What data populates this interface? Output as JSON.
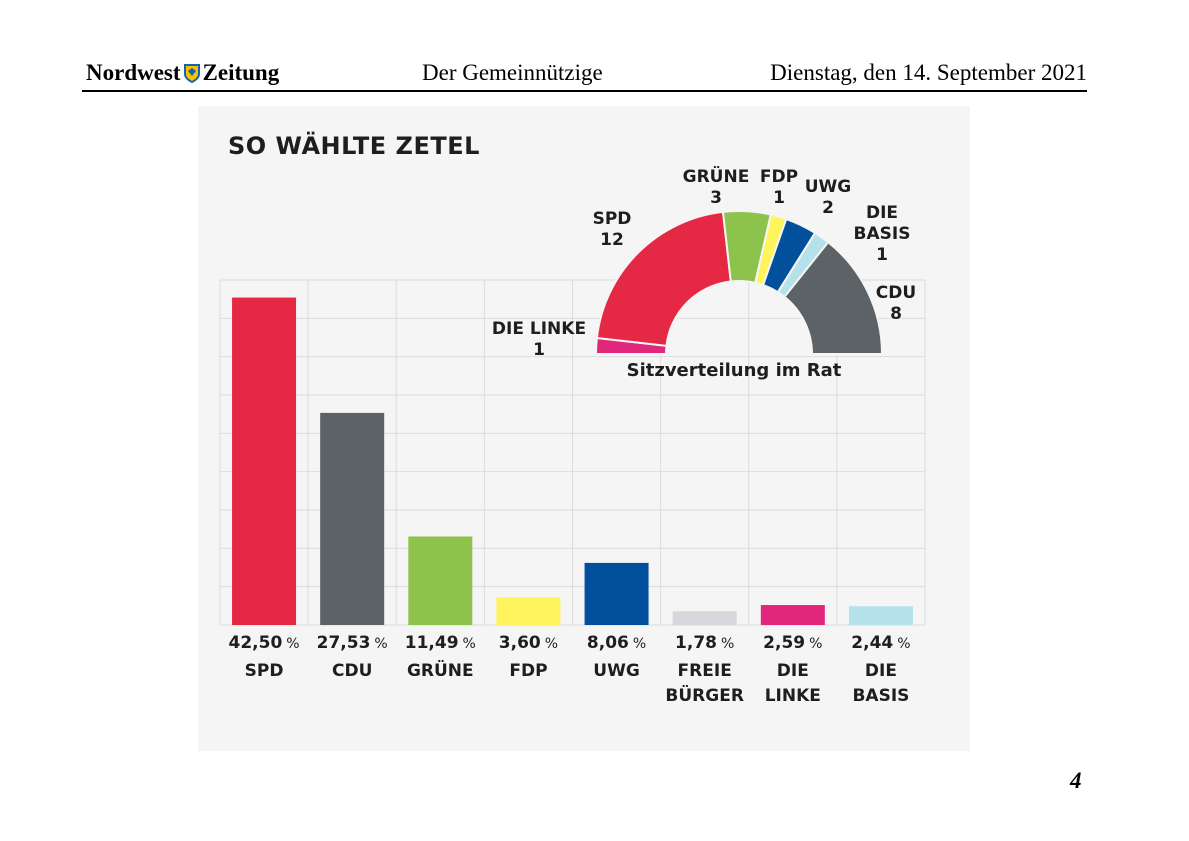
{
  "header": {
    "brand_left": "Nordwest",
    "brand_right": "Zeitung",
    "section": "Der Gemeinnützige",
    "date": "Dienstag, den 14. September 2021"
  },
  "page_number": "4",
  "chart_data": [
    {
      "type": "bar",
      "title": "SO WÄHLTE ZETEL",
      "categories": [
        "SPD",
        "CDU",
        "GRÜNE",
        "FDP",
        "UWG",
        "FREIE BÜRGER",
        "DIE LINKE",
        "DIE BASIS"
      ],
      "category_lines": [
        [
          "SPD"
        ],
        [
          "CDU"
        ],
        [
          "GRÜNE"
        ],
        [
          "FDP"
        ],
        [
          "UWG"
        ],
        [
          "FREIE",
          "BÜRGER"
        ],
        [
          "DIE",
          "LINKE"
        ],
        [
          "DIE",
          "BASIS"
        ]
      ],
      "values": [
        42.5,
        27.53,
        11.49,
        3.6,
        8.06,
        1.78,
        2.59,
        2.44
      ],
      "value_labels": [
        "42,50",
        "27,53",
        "11,49",
        "3,60",
        "8,06",
        "1,78",
        "2,59",
        "2,44"
      ],
      "unit": "%",
      "colors": [
        "#e52843",
        "#5d6266",
        "#8dc24c",
        "#fff45e",
        "#024f9b",
        "#d6d6dc",
        "#e0277b",
        "#b5e2ea"
      ],
      "ylim": [
        0,
        44
      ],
      "grid": true
    },
    {
      "type": "pie",
      "variant": "half-donut",
      "subtitle": "Sitzverteilung im Rat",
      "labels": [
        "DIE LINKE",
        "SPD",
        "GRÜNE",
        "FDP",
        "UWG",
        "DIE BASIS",
        "CDU"
      ],
      "label_lines": [
        [
          "DIE LINKE",
          "1"
        ],
        [
          "SPD",
          "12"
        ],
        [
          "GRÜNE",
          "3"
        ],
        [
          "FDP",
          "1"
        ],
        [
          "UWG",
          "2"
        ],
        [
          "DIE",
          "BASIS",
          "1"
        ],
        [
          "CDU",
          "8"
        ]
      ],
      "values": [
        1,
        12,
        3,
        1,
        2,
        1,
        8
      ],
      "colors": [
        "#e0277b",
        "#e52843",
        "#8dc24c",
        "#fff45e",
        "#024f9b",
        "#b5e2ea",
        "#5d6266"
      ]
    }
  ]
}
